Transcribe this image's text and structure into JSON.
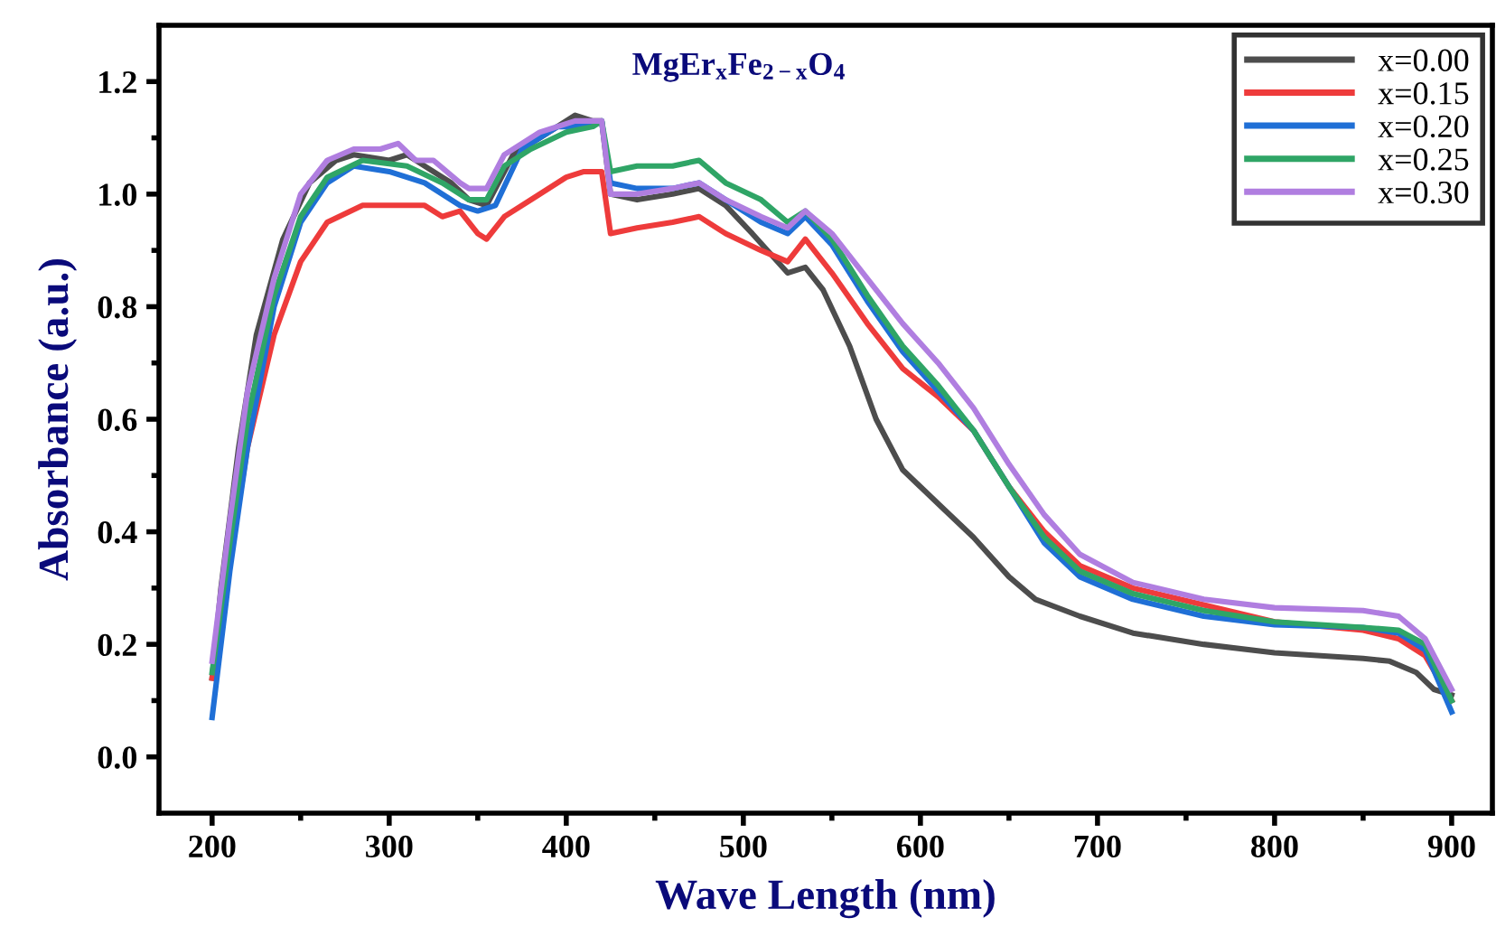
{
  "chart_data": {
    "type": "line",
    "title": "MgEr$_{x}$Fe$_{2−x}$O$_{4}$",
    "xlabel": "Wave Length (nm)",
    "ylabel": "Absorbance (a.u.)",
    "xlim": [
      170,
      923
    ],
    "ylim": [
      -0.1,
      1.3
    ],
    "xticks": [
      200,
      300,
      400,
      500,
      600,
      700,
      800,
      900
    ],
    "yticks": [
      {
        "value": 0,
        "label": "0.0"
      },
      0.2,
      0.4,
      0.6,
      0.8,
      {
        "value": 1,
        "label": "1.0"
      },
      1.2
    ],
    "grid": false,
    "legend": "top right",
    "line_style": "solid",
    "marker": "none",
    "series": [
      {
        "name": "x=0.00",
        "color": "#4d4d4d",
        "x": [
          200,
          205,
          215,
          225,
          240,
          255,
          270,
          280,
          300,
          310,
          320,
          335,
          345,
          355,
          370,
          390,
          405,
          415,
          420,
          425,
          440,
          460,
          475,
          490,
          505,
          525,
          535,
          545,
          560,
          575,
          590,
          610,
          630,
          650,
          665,
          690,
          720,
          760,
          800,
          850,
          865,
          880,
          890,
          900
        ],
        "values": [
          0.14,
          0.3,
          0.55,
          0.75,
          0.92,
          1.02,
          1.06,
          1.07,
          1.06,
          1.07,
          1.05,
          1.02,
          0.99,
          0.98,
          1.07,
          1.11,
          1.14,
          1.13,
          1.13,
          1.0,
          0.99,
          1.0,
          1.01,
          0.98,
          0.93,
          0.86,
          0.87,
          0.83,
          0.73,
          0.6,
          0.51,
          0.45,
          0.39,
          0.32,
          0.28,
          0.25,
          0.22,
          0.2,
          0.185,
          0.175,
          0.17,
          0.15,
          0.12,
          0.11
        ]
      },
      {
        "name": "x=0.15",
        "color": "#ee3b3b",
        "x": [
          200,
          210,
          220,
          235,
          250,
          265,
          285,
          300,
          320,
          330,
          340,
          350,
          355,
          365,
          380,
          400,
          410,
          420,
          425,
          440,
          460,
          475,
          490,
          510,
          525,
          535,
          550,
          570,
          590,
          610,
          630,
          650,
          670,
          690,
          720,
          760,
          800,
          850,
          870,
          885,
          900
        ],
        "values": [
          0.14,
          0.35,
          0.55,
          0.75,
          0.88,
          0.95,
          0.98,
          0.98,
          0.98,
          0.96,
          0.97,
          0.93,
          0.92,
          0.96,
          0.99,
          1.03,
          1.04,
          1.04,
          0.93,
          0.94,
          0.95,
          0.96,
          0.93,
          0.9,
          0.88,
          0.92,
          0.86,
          0.77,
          0.69,
          0.64,
          0.58,
          0.48,
          0.4,
          0.34,
          0.3,
          0.27,
          0.24,
          0.225,
          0.21,
          0.18,
          0.1
        ]
      },
      {
        "name": "x=0.20",
        "color": "#1f6fd6",
        "x": [
          200,
          210,
          220,
          235,
          250,
          265,
          280,
          300,
          320,
          340,
          350,
          360,
          375,
          395,
          410,
          420,
          425,
          440,
          460,
          475,
          490,
          510,
          525,
          535,
          550,
          570,
          590,
          610,
          630,
          650,
          670,
          690,
          720,
          760,
          800,
          850,
          870,
          885,
          900
        ],
        "values": [
          0.07,
          0.33,
          0.55,
          0.8,
          0.95,
          1.02,
          1.05,
          1.04,
          1.02,
          0.98,
          0.97,
          0.98,
          1.08,
          1.12,
          1.12,
          1.13,
          1.02,
          1.01,
          1.01,
          1.02,
          0.99,
          0.95,
          0.93,
          0.96,
          0.91,
          0.81,
          0.72,
          0.65,
          0.58,
          0.48,
          0.38,
          0.32,
          0.28,
          0.25,
          0.235,
          0.23,
          0.22,
          0.19,
          0.08
        ]
      },
      {
        "name": "x=0.25",
        "color": "#2fa566",
        "x": [
          200,
          210,
          220,
          235,
          250,
          265,
          285,
          310,
          330,
          345,
          355,
          365,
          380,
          400,
          415,
          420,
          425,
          440,
          460,
          475,
          490,
          510,
          525,
          535,
          550,
          570,
          590,
          610,
          630,
          650,
          670,
          690,
          720,
          760,
          800,
          850,
          870,
          885,
          900
        ],
        "values": [
          0.15,
          0.38,
          0.6,
          0.82,
          0.96,
          1.03,
          1.06,
          1.05,
          1.02,
          0.99,
          0.99,
          1.05,
          1.08,
          1.11,
          1.12,
          1.13,
          1.04,
          1.05,
          1.05,
          1.06,
          1.02,
          0.99,
          0.95,
          0.97,
          0.92,
          0.82,
          0.73,
          0.66,
          0.58,
          0.48,
          0.39,
          0.33,
          0.29,
          0.26,
          0.24,
          0.23,
          0.225,
          0.2,
          0.1
        ]
      },
      {
        "name": "x=0.30",
        "color": "#b07ee0",
        "x": [
          200,
          210,
          220,
          235,
          250,
          265,
          280,
          295,
          305,
          315,
          325,
          340,
          345,
          355,
          365,
          385,
          405,
          420,
          425,
          440,
          460,
          475,
          490,
          510,
          525,
          535,
          550,
          570,
          590,
          610,
          630,
          650,
          670,
          690,
          720,
          760,
          800,
          850,
          870,
          885,
          900
        ],
        "values": [
          0.17,
          0.42,
          0.65,
          0.85,
          1.0,
          1.06,
          1.08,
          1.08,
          1.09,
          1.06,
          1.06,
          1.02,
          1.01,
          1.01,
          1.07,
          1.11,
          1.13,
          1.13,
          1.0,
          1.0,
          1.01,
          1.02,
          0.99,
          0.96,
          0.94,
          0.97,
          0.93,
          0.85,
          0.77,
          0.7,
          0.62,
          0.52,
          0.43,
          0.36,
          0.31,
          0.28,
          0.265,
          0.26,
          0.25,
          0.21,
          0.12
        ]
      }
    ]
  }
}
